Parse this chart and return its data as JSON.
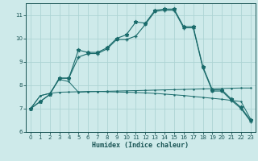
{
  "xlabel": "Humidex (Indice chaleur)",
  "background_color": "#ceeaea",
  "grid_color": "#add4d4",
  "line_color": "#1a6b6b",
  "x_values": [
    0,
    1,
    2,
    3,
    4,
    5,
    6,
    7,
    8,
    9,
    10,
    11,
    12,
    13,
    14,
    15,
    16,
    17,
    18,
    19,
    20,
    21,
    22,
    23
  ],
  "series1": [
    7.0,
    7.3,
    7.6,
    8.3,
    8.3,
    9.5,
    9.4,
    9.4,
    9.6,
    10.0,
    10.15,
    10.7,
    10.65,
    11.2,
    11.25,
    11.25,
    10.5,
    10.5,
    8.8,
    7.8,
    7.8,
    7.4,
    7.05,
    6.5
  ],
  "series2": [
    7.0,
    7.3,
    7.6,
    8.3,
    8.3,
    9.2,
    9.35,
    9.35,
    9.55,
    9.95,
    9.95,
    10.1,
    10.6,
    11.15,
    11.2,
    11.2,
    10.45,
    10.45,
    8.75,
    7.75,
    7.75,
    7.35,
    7.0,
    6.45
  ],
  "series3": [
    7.0,
    7.55,
    7.65,
    8.25,
    8.15,
    7.7,
    7.72,
    7.73,
    7.74,
    7.75,
    7.76,
    7.77,
    7.78,
    7.79,
    7.8,
    7.81,
    7.82,
    7.83,
    7.84,
    7.85,
    7.86,
    7.87,
    7.88,
    7.88
  ],
  "series4": [
    7.0,
    7.55,
    7.65,
    7.7,
    7.71,
    7.72,
    7.73,
    7.73,
    7.72,
    7.71,
    7.7,
    7.69,
    7.67,
    7.65,
    7.62,
    7.59,
    7.56,
    7.52,
    7.48,
    7.44,
    7.4,
    7.35,
    7.3,
    6.55
  ],
  "ylim": [
    6.0,
    11.5
  ],
  "xlim": [
    -0.5,
    23.5
  ],
  "yticks": [
    6,
    7,
    8,
    9,
    10,
    11
  ],
  "xticks": [
    0,
    1,
    2,
    3,
    4,
    5,
    6,
    7,
    8,
    9,
    10,
    11,
    12,
    13,
    14,
    15,
    16,
    17,
    18,
    19,
    20,
    21,
    22,
    23
  ]
}
